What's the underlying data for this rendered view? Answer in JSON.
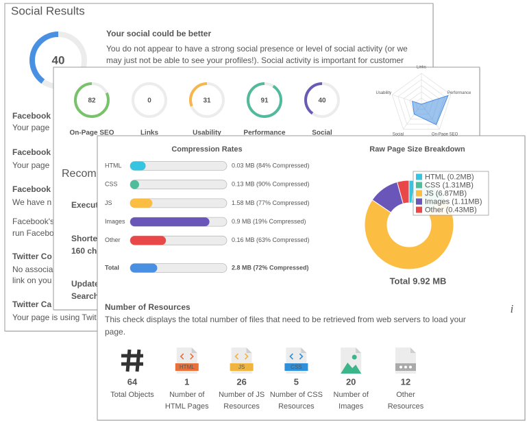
{
  "social_card": {
    "title": "Social Results",
    "score": 40,
    "score_range": [
      0,
      100
    ],
    "score_color": "#4a90e2",
    "heading": "Your social could be better",
    "paragraph": [
      "You do not appear to have a strong social presence or level of social activity (or we",
      "may just not be able to see your profiles!). Social activity is important for customer"
    ],
    "items": [
      {
        "title": "Facebook",
        "lines": [
          "Your page"
        ]
      },
      {
        "title": "Facebook",
        "lines": [
          "Your page"
        ]
      },
      {
        "title": "Facebook",
        "lines": [
          "We have n",
          "Facebook's",
          "run Facebo"
        ]
      },
      {
        "title": "Twitter Co",
        "lines": [
          "No associa",
          "link on you"
        ]
      },
      {
        "title": "Twitter Ca",
        "lines": [
          "Your page is using Twit"
        ]
      }
    ]
  },
  "overview_card": {
    "score_range": [
      0,
      100
    ],
    "scores": [
      {
        "label": "On-Page SEO",
        "value": 82,
        "color": "#78c26b"
      },
      {
        "label": "Links",
        "value": 0,
        "color": "#4dbd9c"
      },
      {
        "label": "Usability",
        "value": 31,
        "color": "#f6b64a"
      },
      {
        "label": "Performance",
        "value": 91,
        "color": "#52b99c"
      },
      {
        "label": "Social",
        "value": 40,
        "color": "#6b5ab5"
      }
    ],
    "radar_order": [
      1,
      3,
      0,
      4,
      2
    ],
    "radar_color": "#4a8fe0",
    "recommendations": {
      "title": "Recom",
      "items": [
        [
          "Executi"
        ],
        [
          "Shorte",
          "160 cha"
        ],
        [
          "Update",
          "Search"
        ]
      ]
    }
  },
  "performance_card": {
    "compression": {
      "title": "Compression Rates",
      "bar_range": [
        0,
        100
      ],
      "rows": [
        {
          "label": "HTML",
          "fill": 16,
          "text": "0.03 MB (84% Compressed)",
          "color": "#36c5e0"
        },
        {
          "label": "CSS",
          "fill": 9,
          "text": "0.13 MB (90% Compressed)",
          "color": "#4dbd9c"
        },
        {
          "label": "JS",
          "fill": 23,
          "text": "1.58 MB (77% Compressed)",
          "color": "#fbbd42"
        },
        {
          "label": "Images",
          "fill": 82,
          "text": "0.9 MB (19% Compressed)",
          "color": "#6a55b8"
        },
        {
          "label": "Other",
          "fill": 37,
          "text": "0.16 MB (63% Compressed)",
          "color": "#e84848"
        }
      ],
      "total": {
        "label": "Total",
        "fill": 28,
        "text": "2.8 MB (72% Compressed)",
        "color": "#4a90e2"
      }
    },
    "chart_data": {
      "type": "donut",
      "title": "Raw Page Size Breakdown",
      "categories": [
        "HTML",
        "CSS",
        "JS",
        "Images",
        "Other"
      ],
      "values": [
        0.2,
        1.31,
        6.87,
        1.11,
        0.43
      ],
      "value_labels": [
        "HTML (0.2MB)",
        "CSS (1.31MB)",
        "JS (6.87MB)",
        "Images (1.11MB)",
        "Other (0.43MB)"
      ],
      "colors": [
        "#36c5e0",
        "#4dbd9c",
        "#fbbd42",
        "#6a55b8",
        "#e84848"
      ],
      "legend": "top-right",
      "total_label": "Total 9.92 MB"
    },
    "resources": {
      "title": "Number of Resources",
      "description": [
        "This check displays the total number of files that need to be retrieved from web servers to load your",
        "page."
      ],
      "info": "i",
      "items": [
        {
          "count": "64",
          "label": [
            "Total Objects"
          ],
          "icon": "hash"
        },
        {
          "count": "1",
          "label": [
            "Number of",
            "HTML Pages"
          ],
          "icon": "file",
          "icon_text": "HTML",
          "color": "#e8703a"
        },
        {
          "count": "26",
          "label": [
            "Number of JS",
            "Resources"
          ],
          "icon": "file",
          "icon_text": "JS",
          "color": "#f0b440"
        },
        {
          "count": "5",
          "label": [
            "Number of CSS",
            "Resources"
          ],
          "icon": "file",
          "icon_text": "CSS",
          "color": "#2f8fd8"
        },
        {
          "count": "20",
          "label": [
            "Number of",
            "Images"
          ],
          "icon": "image",
          "color": "#3bb58a"
        },
        {
          "count": "12",
          "label": [
            "Other",
            "Resources"
          ],
          "icon": "other",
          "color": "#aaaaaa"
        }
      ]
    }
  }
}
